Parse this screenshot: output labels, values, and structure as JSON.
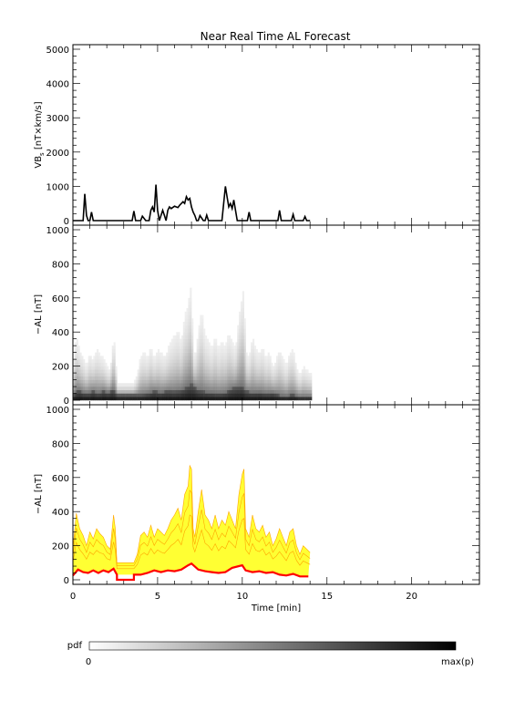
{
  "title": "Near Real Time AL Forecast",
  "chart_data": [
    {
      "id": "vbs",
      "type": "line",
      "ylabel_main": "VB",
      "ylabel_sub": "s",
      "ylabel_tail": " [nT×km/s]",
      "ylim": [
        0,
        5000
      ],
      "yticks": [
        0,
        1000,
        2000,
        3000,
        4000,
        5000
      ],
      "xlim": [
        0,
        24
      ],
      "series": [
        {
          "x": [
            0,
            0.6,
            0.7,
            0.8,
            0.9,
            1.0,
            1.1,
            1.2,
            1.3,
            3.5,
            3.6,
            3.7,
            4.0,
            4.1,
            4.3,
            4.5,
            4.6,
            4.7,
            4.8,
            4.9,
            5.0,
            5.1,
            5.3,
            5.4,
            5.5,
            5.6,
            5.7,
            5.8,
            6.0,
            6.2,
            6.3,
            6.5,
            6.6,
            6.7,
            6.8,
            6.9,
            7.0,
            7.1,
            7.2,
            7.3,
            7.4,
            7.5,
            7.7,
            7.8,
            7.9,
            8.0,
            8.2,
            8.3,
            8.5,
            8.8,
            8.9,
            9.0,
            9.1,
            9.2,
            9.3,
            9.4,
            9.5,
            9.6,
            9.7,
            9.8,
            10.0,
            10.3,
            10.4,
            10.5,
            10.7,
            12.1,
            12.2,
            12.3,
            12.9,
            13.0,
            13.1,
            13.6,
            13.7,
            13.8,
            14.0
          ],
          "y": [
            0,
            0,
            780,
            150,
            0,
            0,
            250,
            0,
            0,
            0,
            280,
            0,
            0,
            130,
            0,
            0,
            300,
            400,
            250,
            1050,
            300,
            0,
            300,
            150,
            0,
            300,
            400,
            350,
            420,
            380,
            450,
            550,
            500,
            700,
            600,
            650,
            400,
            250,
            150,
            0,
            0,
            150,
            0,
            0,
            160,
            0,
            0,
            0,
            0,
            0,
            500,
            1000,
            700,
            400,
            500,
            350,
            600,
            300,
            0,
            0,
            0,
            0,
            250,
            0,
            0,
            0,
            300,
            0,
            0,
            180,
            0,
            0,
            120,
            0,
            0
          ]
        }
      ]
    },
    {
      "id": "pdf",
      "type": "heatmap",
      "ylabel": "−AL [nT]",
      "ylim": [
        0,
        1000
      ],
      "yticks": [
        0,
        200,
        400,
        600,
        800,
        1000
      ],
      "xlim": [
        0,
        24
      ],
      "x_extent": [
        0,
        14
      ],
      "colormap": "white → black (pdf 0 to max(p))"
    },
    {
      "id": "forecast",
      "type": "line",
      "ylabel": "−AL [nT]",
      "ylim": [
        0,
        1000
      ],
      "yticks": [
        0,
        200,
        400,
        600,
        800,
        1000
      ],
      "xlim": [
        0,
        24
      ],
      "xticks": [
        0,
        5,
        10,
        15,
        20
      ],
      "xlabel": "Time [min]",
      "gap": [
        2.6,
        3.6
      ],
      "colors": {
        "median": "#ff0000",
        "band": "#ffff33",
        "band_edge": "#ffa500"
      },
      "median": {
        "x": [
          0,
          0.3,
          0.6,
          0.9,
          1.2,
          1.5,
          1.8,
          2.1,
          2.4,
          2.6,
          3.6,
          4.0,
          4.4,
          4.8,
          5.2,
          5.6,
          6.0,
          6.4,
          6.8,
          7.0,
          7.4,
          7.8,
          8.2,
          8.6,
          9.0,
          9.4,
          9.8,
          10.0,
          10.2,
          10.6,
          11.0,
          11.4,
          11.8,
          12.2,
          12.6,
          13.0,
          13.4,
          13.9
        ],
        "y": [
          25,
          60,
          45,
          40,
          55,
          40,
          55,
          45,
          65,
          30,
          30,
          30,
          40,
          55,
          45,
          55,
          50,
          60,
          85,
          95,
          60,
          50,
          45,
          40,
          45,
          70,
          80,
          85,
          55,
          45,
          50,
          40,
          45,
          30,
          25,
          35,
          20,
          20
        ]
      },
      "upper": {
        "x": [
          0,
          0.2,
          0.4,
          0.6,
          0.8,
          1.0,
          1.2,
          1.4,
          1.6,
          1.8,
          2.0,
          2.2,
          2.4,
          2.5,
          2.6,
          3.6,
          3.8,
          4.0,
          4.2,
          4.4,
          4.6,
          4.8,
          5.0,
          5.2,
          5.4,
          5.6,
          5.8,
          6.0,
          6.2,
          6.4,
          6.6,
          6.8,
          6.9,
          7.0,
          7.1,
          7.2,
          7.4,
          7.6,
          7.8,
          8.0,
          8.2,
          8.4,
          8.6,
          8.8,
          9.0,
          9.2,
          9.4,
          9.6,
          9.8,
          10.0,
          10.1,
          10.2,
          10.4,
          10.6,
          10.8,
          11.0,
          11.2,
          11.4,
          11.6,
          11.8,
          12.0,
          12.2,
          12.4,
          12.6,
          12.8,
          13.0,
          13.2,
          13.4,
          13.6,
          13.8,
          14.0
        ],
        "y": [
          180,
          390,
          300,
          260,
          200,
          280,
          240,
          300,
          270,
          250,
          200,
          180,
          380,
          300,
          100,
          100,
          150,
          260,
          280,
          250,
          320,
          250,
          300,
          280,
          260,
          300,
          350,
          380,
          420,
          350,
          500,
          550,
          670,
          650,
          300,
          250,
          400,
          530,
          380,
          350,
          300,
          380,
          300,
          350,
          320,
          400,
          350,
          300,
          500,
          620,
          650,
          300,
          250,
          380,
          300,
          280,
          320,
          250,
          280,
          200,
          240,
          300,
          250,
          200,
          280,
          300,
          200,
          150,
          200,
          180,
          160
        ]
      }
    }
  ],
  "colorbar": {
    "label": "pdf",
    "min_label": "0",
    "max_label": "max(p)"
  }
}
